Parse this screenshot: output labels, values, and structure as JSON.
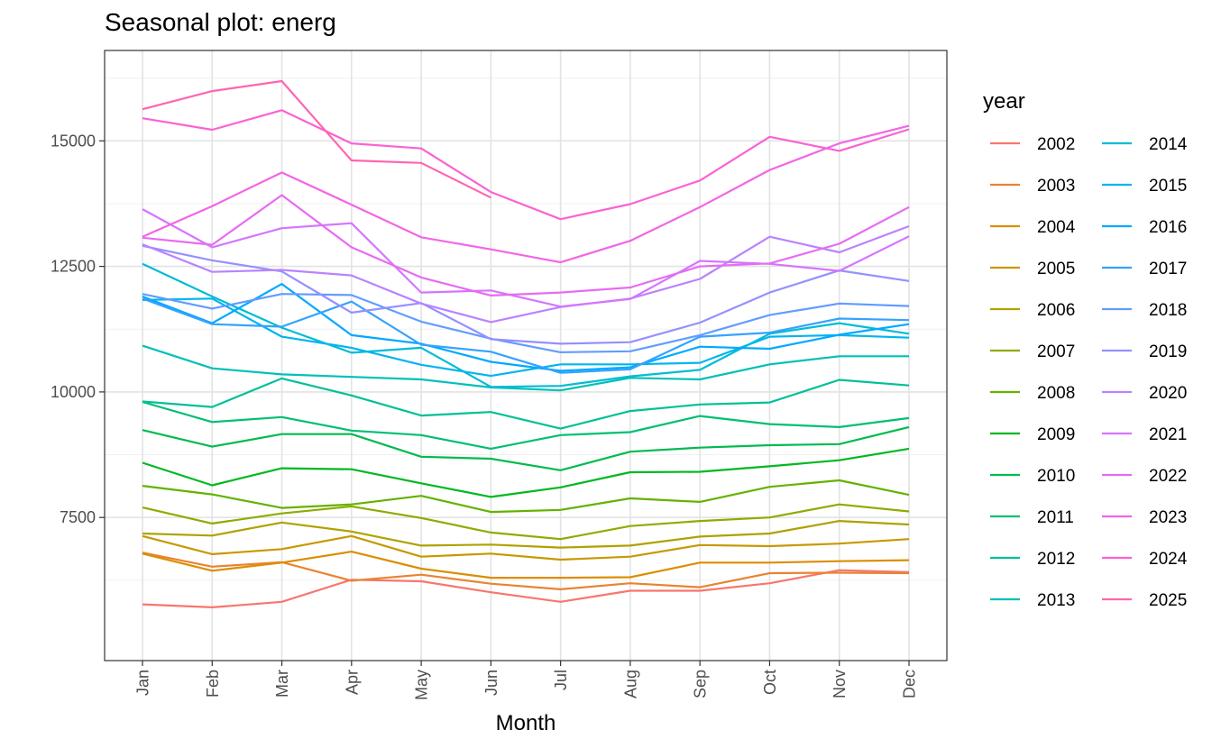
{
  "chart_data": {
    "type": "line",
    "title": "Seasonal plot: energ",
    "xlabel": "Month",
    "ylabel": "",
    "categories": [
      "Jan",
      "Feb",
      "Mar",
      "Apr",
      "May",
      "Jun",
      "Jul",
      "Aug",
      "Sep",
      "Oct",
      "Nov",
      "Dec"
    ],
    "ylim": [
      4650,
      16800
    ],
    "yticks": [
      7500,
      10000,
      12500,
      15000
    ],
    "ytick_labels": [
      "7500",
      "10000",
      "12500",
      "15000"
    ],
    "grid": true,
    "legend": {
      "title": "year",
      "placement": "right"
    },
    "series": [
      {
        "name": "2002",
        "color": "#F8766D",
        "values": [
          5770,
          5710,
          5820,
          6260,
          6230,
          6010,
          5820,
          6040,
          6040,
          6190,
          6450,
          6410
        ]
      },
      {
        "name": "2003",
        "color": "#EA8331",
        "values": [
          6800,
          6520,
          6610,
          6240,
          6360,
          6180,
          6070,
          6190,
          6110,
          6390,
          6400,
          6390
        ]
      },
      {
        "name": "2004",
        "color": "#DB8E00",
        "values": [
          6780,
          6440,
          6600,
          6820,
          6480,
          6300,
          6300,
          6310,
          6600,
          6600,
          6630,
          6650
        ]
      },
      {
        "name": "2005",
        "color": "#C79800",
        "values": [
          7130,
          6770,
          6870,
          7130,
          6720,
          6780,
          6660,
          6720,
          6950,
          6930,
          6980,
          7070
        ]
      },
      {
        "name": "2006",
        "color": "#AEA200",
        "values": [
          7180,
          7140,
          7400,
          7220,
          6940,
          6960,
          6900,
          6940,
          7120,
          7180,
          7430,
          7360
        ]
      },
      {
        "name": "2007",
        "color": "#8EAB00",
        "values": [
          7700,
          7380,
          7580,
          7720,
          7490,
          7200,
          7070,
          7330,
          7430,
          7500,
          7760,
          7620
        ]
      },
      {
        "name": "2008",
        "color": "#64B200",
        "values": [
          8130,
          7960,
          7690,
          7760,
          7930,
          7610,
          7650,
          7880,
          7810,
          8110,
          8240,
          7950
        ]
      },
      {
        "name": "2009",
        "color": "#00B81F",
        "values": [
          8590,
          8140,
          8480,
          8460,
          8180,
          7910,
          8100,
          8400,
          8410,
          8520,
          8640,
          8870
        ]
      },
      {
        "name": "2010",
        "color": "#00BB4E",
        "values": [
          9240,
          8910,
          9160,
          9160,
          8710,
          8670,
          8440,
          8810,
          8890,
          8940,
          8960,
          9300
        ]
      },
      {
        "name": "2011",
        "color": "#00BF74",
        "values": [
          9800,
          9400,
          9500,
          9230,
          9140,
          8870,
          9140,
          9200,
          9520,
          9360,
          9300,
          9480
        ]
      },
      {
        "name": "2012",
        "color": "#00C097",
        "values": [
          9810,
          9700,
          10270,
          9930,
          9530,
          9600,
          9270,
          9620,
          9750,
          9790,
          10240,
          10130
        ]
      },
      {
        "name": "2013",
        "color": "#00C0B8",
        "values": [
          10920,
          10470,
          10350,
          10300,
          10250,
          10090,
          10030,
          10280,
          10250,
          10550,
          10710,
          10710
        ]
      },
      {
        "name": "2014",
        "color": "#00BCD6",
        "values": [
          12550,
          11900,
          11280,
          10780,
          10880,
          10100,
          10120,
          10310,
          10440,
          11160,
          11370,
          11160
        ]
      },
      {
        "name": "2015",
        "color": "#00B5EE",
        "values": [
          11830,
          11860,
          11100,
          10880,
          10540,
          10320,
          10550,
          10550,
          10580,
          11100,
          11130,
          11080
        ]
      },
      {
        "name": "2016",
        "color": "#00A9FF",
        "values": [
          11900,
          11370,
          12150,
          11130,
          10960,
          10600,
          10420,
          10490,
          10900,
          10860,
          11140,
          11350
        ]
      },
      {
        "name": "2017",
        "color": "#35A2FF",
        "values": [
          11860,
          11350,
          11300,
          11800,
          10940,
          10800,
          10380,
          10450,
          11100,
          11180,
          11460,
          11430
        ]
      },
      {
        "name": "2018",
        "color": "#619CFF",
        "values": [
          11950,
          11660,
          11950,
          11930,
          11400,
          11060,
          10790,
          10810,
          11130,
          11530,
          11760,
          11710
        ]
      },
      {
        "name": "2019",
        "color": "#9590FF",
        "values": [
          12910,
          12620,
          12400,
          11580,
          11770,
          11050,
          10960,
          10990,
          11380,
          11980,
          12420,
          12210
        ]
      },
      {
        "name": "2020",
        "color": "#B983FF",
        "values": [
          12940,
          12390,
          12430,
          12320,
          11760,
          11390,
          11690,
          11860,
          12250,
          13090,
          12780,
          13300
        ]
      },
      {
        "name": "2021",
        "color": "#D575FE",
        "values": [
          13640,
          12880,
          13260,
          13360,
          11980,
          12020,
          11700,
          11850,
          12610,
          12550,
          12410,
          13100
        ]
      },
      {
        "name": "2022",
        "color": "#E76BF3",
        "values": [
          13070,
          12930,
          13920,
          12880,
          12280,
          11920,
          11980,
          12080,
          12500,
          12560,
          12950,
          13680
        ]
      },
      {
        "name": "2023",
        "color": "#F365E6",
        "values": [
          13090,
          13700,
          14370,
          13730,
          13080,
          12840,
          12580,
          13010,
          13680,
          14420,
          14950,
          15300
        ]
      },
      {
        "name": "2024",
        "color": "#FA62D4",
        "values": [
          15450,
          15220,
          15610,
          14950,
          14850,
          13980,
          13440,
          13740,
          14210,
          15080,
          14800,
          15230
        ]
      },
      {
        "name": "2025",
        "color": "#FF64B0",
        "values": [
          15630,
          15990,
          16190,
          14610,
          14560,
          13870,
          null,
          null,
          null,
          null,
          null,
          null
        ]
      }
    ]
  }
}
